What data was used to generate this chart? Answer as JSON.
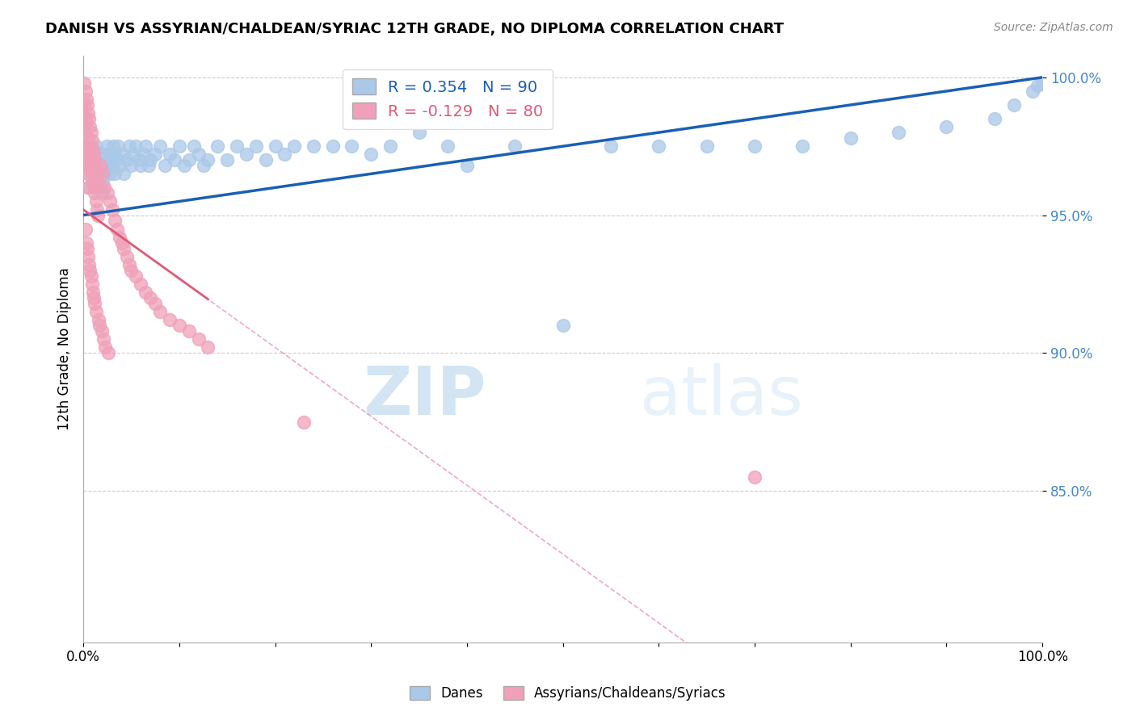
{
  "title": "DANISH VS ASSYRIAN/CHALDEAN/SYRIAC 12TH GRADE, NO DIPLOMA CORRELATION CHART",
  "source": "Source: ZipAtlas.com",
  "ylabel": "12th Grade, No Diploma",
  "xlim": [
    0.0,
    1.0
  ],
  "ylim": [
    0.795,
    1.008
  ],
  "yticks": [
    0.85,
    0.9,
    0.95,
    1.0
  ],
  "ytick_labels": [
    "85.0%",
    "90.0%",
    "95.0%",
    "100.0%"
  ],
  "xticks": [
    0.0,
    0.1,
    0.2,
    0.3,
    0.4,
    0.5,
    0.6,
    0.7,
    0.8,
    0.9,
    1.0
  ],
  "xtick_labels": [
    "0.0%",
    "",
    "",
    "",
    "",
    "",
    "",
    "",
    "",
    "",
    "100.0%"
  ],
  "legend_label_blue": "Danes",
  "legend_label_pink": "Assyrians/Chaldeans/Syriacs",
  "R_blue": 0.354,
  "N_blue": 90,
  "R_pink": -0.129,
  "N_pink": 80,
  "blue_color": "#aac8e8",
  "pink_color": "#f0a0b8",
  "blue_line_color": "#1a5fb4",
  "pink_line_color": "#e05878",
  "watermark_zip": "ZIP",
  "watermark_atlas": "atlas",
  "blue_scatter_x": [
    0.001,
    0.002,
    0.003,
    0.004,
    0.005,
    0.006,
    0.008,
    0.01,
    0.012,
    0.013,
    0.014,
    0.015,
    0.016,
    0.017,
    0.018,
    0.019,
    0.02,
    0.021,
    0.022,
    0.023,
    0.024,
    0.025,
    0.026,
    0.027,
    0.028,
    0.029,
    0.03,
    0.031,
    0.032,
    0.033,
    0.035,
    0.036,
    0.038,
    0.04,
    0.042,
    0.045,
    0.048,
    0.05,
    0.052,
    0.055,
    0.058,
    0.06,
    0.063,
    0.065,
    0.068,
    0.07,
    0.075,
    0.08,
    0.085,
    0.09,
    0.095,
    0.1,
    0.105,
    0.11,
    0.115,
    0.12,
    0.125,
    0.13,
    0.14,
    0.15,
    0.16,
    0.17,
    0.18,
    0.19,
    0.2,
    0.21,
    0.22,
    0.24,
    0.26,
    0.28,
    0.3,
    0.32,
    0.35,
    0.38,
    0.4,
    0.45,
    0.5,
    0.55,
    0.6,
    0.65,
    0.7,
    0.75,
    0.8,
    0.85,
    0.9,
    0.95,
    0.97,
    0.99,
    0.995,
    1.0
  ],
  "blue_scatter_y": [
    0.98,
    0.975,
    0.97,
    0.965,
    0.96,
    0.97,
    0.975,
    0.968,
    0.97,
    0.975,
    0.965,
    0.968,
    0.972,
    0.965,
    0.96,
    0.958,
    0.962,
    0.968,
    0.972,
    0.965,
    0.975,
    0.97,
    0.968,
    0.972,
    0.965,
    0.97,
    0.968,
    0.975,
    0.972,
    0.965,
    0.97,
    0.975,
    0.968,
    0.972,
    0.965,
    0.97,
    0.975,
    0.968,
    0.972,
    0.975,
    0.97,
    0.968,
    0.972,
    0.975,
    0.968,
    0.97,
    0.972,
    0.975,
    0.968,
    0.972,
    0.97,
    0.975,
    0.968,
    0.97,
    0.975,
    0.972,
    0.968,
    0.97,
    0.975,
    0.97,
    0.975,
    0.972,
    0.975,
    0.97,
    0.975,
    0.972,
    0.975,
    0.975,
    0.975,
    0.975,
    0.972,
    0.975,
    0.98,
    0.975,
    0.968,
    0.975,
    0.91,
    0.975,
    0.975,
    0.975,
    0.975,
    0.975,
    0.978,
    0.98,
    0.982,
    0.985,
    0.99,
    0.995,
    0.997,
    0.998
  ],
  "pink_scatter_x": [
    0.001,
    0.002,
    0.003,
    0.004,
    0.005,
    0.006,
    0.007,
    0.008,
    0.009,
    0.01,
    0.011,
    0.012,
    0.013,
    0.014,
    0.015,
    0.001,
    0.002,
    0.003,
    0.004,
    0.005,
    0.006,
    0.007,
    0.008,
    0.009,
    0.01,
    0.011,
    0.012,
    0.013,
    0.014,
    0.015,
    0.001,
    0.002,
    0.003,
    0.004,
    0.005,
    0.018,
    0.02,
    0.022,
    0.025,
    0.028,
    0.03,
    0.033,
    0.035,
    0.038,
    0.04,
    0.042,
    0.045,
    0.048,
    0.05,
    0.055,
    0.06,
    0.065,
    0.07,
    0.075,
    0.08,
    0.09,
    0.1,
    0.11,
    0.12,
    0.13,
    0.002,
    0.003,
    0.004,
    0.005,
    0.006,
    0.007,
    0.008,
    0.009,
    0.01,
    0.011,
    0.012,
    0.013,
    0.016,
    0.017,
    0.019,
    0.021,
    0.023,
    0.026,
    0.23,
    0.7
  ],
  "pink_scatter_y": [
    0.99,
    0.985,
    0.982,
    0.978,
    0.975,
    0.972,
    0.97,
    0.968,
    0.965,
    0.962,
    0.96,
    0.958,
    0.955,
    0.952,
    0.95,
    0.998,
    0.995,
    0.992,
    0.99,
    0.987,
    0.985,
    0.982,
    0.98,
    0.977,
    0.974,
    0.972,
    0.97,
    0.967,
    0.964,
    0.961,
    0.975,
    0.972,
    0.968,
    0.965,
    0.96,
    0.968,
    0.965,
    0.96,
    0.958,
    0.955,
    0.952,
    0.948,
    0.945,
    0.942,
    0.94,
    0.938,
    0.935,
    0.932,
    0.93,
    0.928,
    0.925,
    0.922,
    0.92,
    0.918,
    0.915,
    0.912,
    0.91,
    0.908,
    0.905,
    0.902,
    0.945,
    0.94,
    0.938,
    0.935,
    0.932,
    0.93,
    0.928,
    0.925,
    0.922,
    0.92,
    0.918,
    0.915,
    0.912,
    0.91,
    0.908,
    0.905,
    0.902,
    0.9,
    0.875,
    0.855
  ]
}
